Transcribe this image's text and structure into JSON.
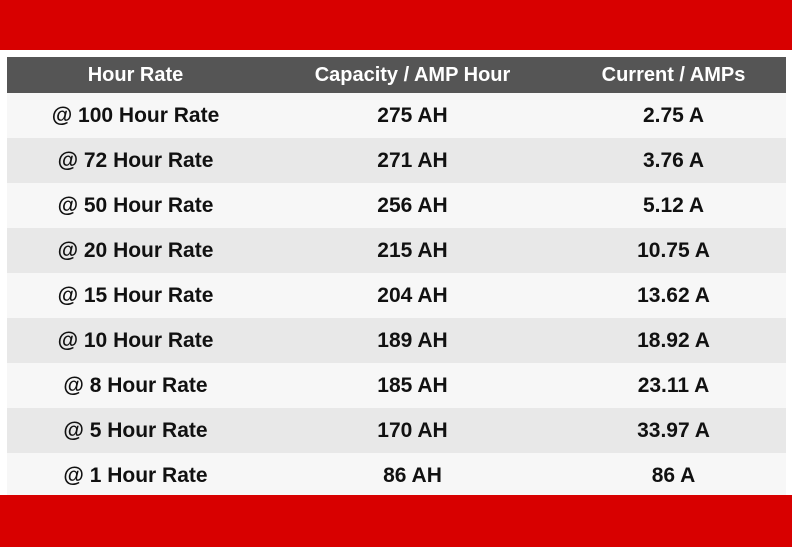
{
  "colors": {
    "band": "#d80000",
    "header_bg": "#555555",
    "row_light": "#f7f7f7",
    "row_dark": "#e8e8e8"
  },
  "table": {
    "headers": [
      "Hour Rate",
      "Capacity / AMP Hour",
      "Current / AMPs"
    ],
    "rows": [
      [
        "@ 100 Hour Rate",
        "275 AH",
        "2.75 A"
      ],
      [
        "@ 72 Hour Rate",
        "271 AH",
        "3.76 A"
      ],
      [
        "@ 50 Hour Rate",
        "256 AH",
        "5.12 A"
      ],
      [
        "@ 20 Hour Rate",
        "215 AH",
        "10.75 A"
      ],
      [
        "@ 15 Hour Rate",
        "204 AH",
        "13.62 A"
      ],
      [
        "@ 10 Hour Rate",
        "189 AH",
        "18.92 A"
      ],
      [
        "@ 8 Hour Rate",
        "185 AH",
        "23.11 A"
      ],
      [
        "@ 5 Hour Rate",
        "170 AH",
        "33.97 A"
      ],
      [
        "@ 1 Hour Rate",
        "86 AH",
        "86 A"
      ]
    ]
  }
}
